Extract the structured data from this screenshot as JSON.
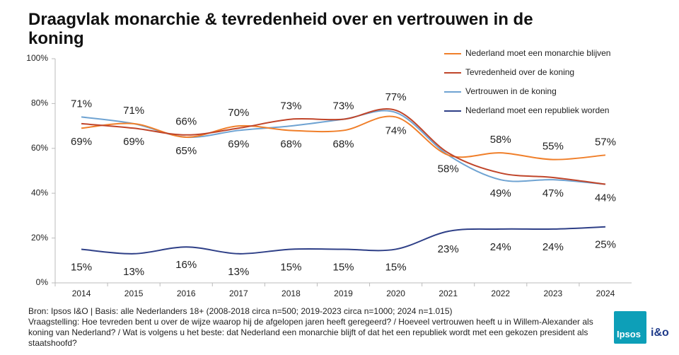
{
  "chart_data": {
    "type": "line",
    "title": "Draagvlak monarchie & tevredenheid over en vertrouwen in de koning",
    "categories": [
      "2014",
      "2015",
      "2016",
      "2017",
      "2018",
      "2019",
      "2020",
      "2021",
      "2022",
      "2023",
      "2024"
    ],
    "ylim": [
      0,
      100
    ],
    "yticks": [
      {
        "value": 0,
        "label": "0%"
      },
      {
        "value": 20,
        "label": "20%"
      },
      {
        "value": 40,
        "label": "40%"
      },
      {
        "value": 60,
        "label": "60%"
      },
      {
        "value": 80,
        "label": "80%"
      },
      {
        "value": 100,
        "label": "100%"
      }
    ],
    "grid": false,
    "legend": "top-right",
    "series": [
      {
        "name": "Nederland moet een monarchie blijven",
        "color": "#f07f2a",
        "values": [
          69,
          71,
          65,
          70,
          68,
          68,
          74,
          57,
          58,
          55,
          57
        ],
        "value_labels": [
          "69%",
          "71%",
          "65%",
          "70%",
          "68%",
          "68%",
          "74%",
          null,
          "58%",
          "55%",
          "57%"
        ]
      },
      {
        "name": "Tevredenheid over de koning",
        "color": "#c0452a",
        "values": [
          71,
          69,
          66,
          69,
          73,
          73,
          77,
          58,
          49,
          47,
          44
        ],
        "value_labels": [
          "71%",
          "69%",
          "66%",
          "69%",
          "73%",
          "73%",
          "77%",
          "58%",
          "49%",
          "47%",
          "44%"
        ]
      },
      {
        "name": "Vertrouwen in de koning",
        "color": "#6fa3d2",
        "values": [
          74,
          71,
          65,
          68,
          70,
          73,
          76,
          57,
          46,
          46,
          44
        ]
      },
      {
        "name": "Nederland moet een republiek worden",
        "color": "#2e3f87",
        "values": [
          15,
          13,
          16,
          13,
          15,
          15,
          15,
          23,
          24,
          24,
          25
        ],
        "value_labels": [
          "15%",
          "13%",
          "16%",
          "13%",
          "15%",
          "15%",
          "15%",
          "23%",
          "24%",
          "24%",
          "25%"
        ]
      }
    ]
  },
  "footer": [
    "Bron: Ipsos I&O | Basis: alle Nederlanders  18+ (2008-2018  circa n=500; 2019-2023 circa n=1000; 2024 n=1.015)",
    "Vraagstelling: Hoe tevreden  bent u over  de wijze waarop hij de afgelopen  jaren heeft geregeerd?  / Hoeveel vertrouwen  heeft u in Willem-Alexander als koning van Nederland?  / Wat is volgens u het beste: dat Nederland  een monarchie  blijft of dat het een republiek wordt  met een gekozen president als staatshoofd?"
  ],
  "logo": {
    "name": "Ipsos",
    "partner": "i&o"
  }
}
